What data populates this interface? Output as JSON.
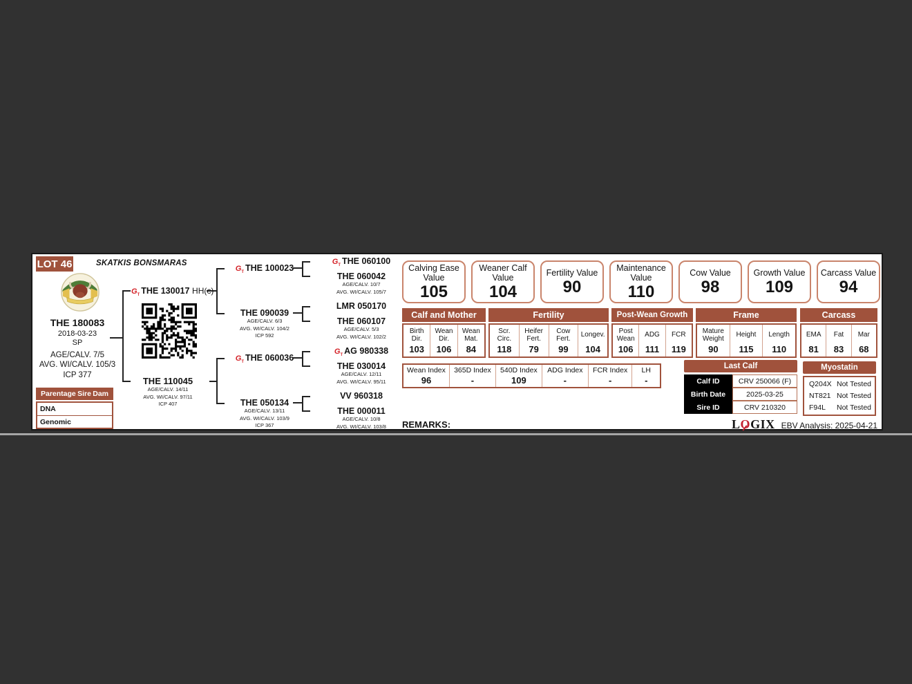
{
  "lot": {
    "label": "LOT 46"
  },
  "stud": {
    "name": "SKATKIS BONSMARAS"
  },
  "subject": {
    "id": "THE 180083",
    "birth_date": "2018-03-23",
    "status": "SP",
    "age_calv": "AGE/CALV. 7/5",
    "avg_wi_calv": "AVG. WI/CALV. 105/3",
    "icp": "ICP 377"
  },
  "parentage": {
    "title": "Parentage",
    "col_sire": "Sire",
    "col_dam": "Dam",
    "row_dna": "DNA",
    "row_genomic": "Genomic"
  },
  "pedigree": {
    "sire": {
      "id": "THE 130017",
      "suffix": "HH(c)"
    },
    "dam": {
      "id": "THE 110045",
      "line1": "AGE/CALV. 14/11",
      "line2": "AVG. WI/CALV. 97/11",
      "line3": "ICP 407"
    },
    "g3a": {
      "id": "THE 100023"
    },
    "g3b": {
      "id": "THE 090039",
      "line1": "AGE/CALV. 6/3",
      "line2": "AVG. WI/CALV. 104/2",
      "line3": "ICP 592"
    },
    "g3c": {
      "id": "THE 060036"
    },
    "g3d": {
      "id": "THE 050134",
      "line1": "AGE/CALV. 13/11",
      "line2": "AVG. WI/CALV. 103/9",
      "line3": "ICP 367"
    },
    "g4a": {
      "id": "THE 060100"
    },
    "g4b": {
      "id": "THE 060042",
      "line1": "AGE/CALV. 10/7",
      "line2": "AVG. WI/CALV. 105/7"
    },
    "g4c": {
      "id": "LMR 050170"
    },
    "g4d": {
      "id": "THE 060107",
      "line1": "AGE/CALV. 5/3",
      "line2": "AVG. WI/CALV. 102/2"
    },
    "g4e": {
      "id": "AG 980338"
    },
    "g4f": {
      "id": "THE 030014",
      "line1": "AGE/CALV. 12/11",
      "line2": "AVG. WI/CALV. 95/11"
    },
    "g4g": {
      "id": "VV 960318"
    },
    "g4h": {
      "id": "THE 000011",
      "line1": "AGE/CALV. 10/8",
      "line2": "AVG. WI/CALV. 103/8"
    }
  },
  "values": [
    {
      "label": "Calving Ease Value",
      "value": "105"
    },
    {
      "label": "Weaner Calf Value",
      "value": "104"
    },
    {
      "label": "Fertility Value",
      "value": "90"
    },
    {
      "label": "Maintenance Value",
      "value": "110"
    },
    {
      "label": "Cow Value",
      "value": "98"
    },
    {
      "label": "Growth Value",
      "value": "109"
    },
    {
      "label": "Carcass Value",
      "value": "94"
    }
  ],
  "groups": [
    {
      "title": "Calf and Mother",
      "cells": [
        {
          "label": "Birth Dir.",
          "value": "103"
        },
        {
          "label": "Wean Dir.",
          "value": "106"
        },
        {
          "label": "Wean Mat.",
          "value": "84"
        }
      ]
    },
    {
      "title": "Fertility",
      "cells": [
        {
          "label": "Scr. Circ.",
          "value": "118"
        },
        {
          "label": "Heifer Fert.",
          "value": "79"
        },
        {
          "label": "Cow Fert.",
          "value": "99"
        },
        {
          "label": "Longev.",
          "value": "104"
        }
      ]
    },
    {
      "title": "Post-Wean Growth",
      "cells": [
        {
          "label": "Post Wean",
          "value": "106"
        },
        {
          "label": "ADG",
          "value": "111"
        },
        {
          "label": "FCR",
          "value": "119"
        }
      ]
    },
    {
      "title": "Frame",
      "cells": [
        {
          "label": "Mature Weight",
          "value": "90"
        },
        {
          "label": "Height",
          "value": "115"
        },
        {
          "label": "Length",
          "value": "110"
        }
      ]
    },
    {
      "title": "Carcass",
      "cells": [
        {
          "label": "EMA",
          "value": "81"
        },
        {
          "label": "Fat",
          "value": "83"
        },
        {
          "label": "Mar",
          "value": "68"
        }
      ]
    }
  ],
  "indexes": [
    {
      "label": "Wean Index",
      "value": "96"
    },
    {
      "label": "365D Index",
      "value": "-"
    },
    {
      "label": "540D Index",
      "value": "109"
    },
    {
      "label": "ADG Index",
      "value": "-"
    },
    {
      "label": "FCR Index",
      "value": "-"
    },
    {
      "label": "LH",
      "value": "-"
    }
  ],
  "last_calf": {
    "title": "Last Calf",
    "rows": [
      {
        "label": "Calf ID",
        "value": "CRV 250066 (F)"
      },
      {
        "label": "Birth Date",
        "value": "2025-03-25"
      },
      {
        "label": "Sire ID",
        "value": "CRV 210320"
      }
    ]
  },
  "myostatin": {
    "title": "Myostatin",
    "rows": [
      {
        "gene": "Q204X",
        "result": "Not Tested"
      },
      {
        "gene": "NT821",
        "result": "Not Tested"
      },
      {
        "gene": "F94L",
        "result": "Not Tested"
      }
    ]
  },
  "footer": {
    "remarks": "REMARKS:",
    "logo_l": "L",
    "logo_o": "O",
    "logo_gix": "GIX",
    "analysis": "EBV Analysis: 2025-04-21"
  },
  "colors": {
    "page_bg": "#313131",
    "header_brown": "#a0523c",
    "value_box_border": "#c9846b",
    "genomic_icon_red": "#d42127",
    "last_calf_label_bg": "#000000"
  }
}
